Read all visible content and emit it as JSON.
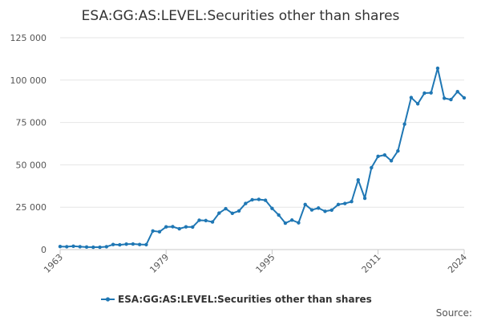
{
  "chart_data": {
    "type": "line",
    "title": "ESA:GG:AS:LEVEL:Securities other than shares",
    "xlabel": "",
    "ylabel": "",
    "ylim": [
      0,
      125000
    ],
    "yticks": [
      0,
      25000,
      50000,
      75000,
      100000,
      125000
    ],
    "ytick_labels": [
      "0",
      "25 000",
      "50 000",
      "75 000",
      "100 000",
      "125 000"
    ],
    "xlim": [
      1963,
      2024
    ],
    "xticks": [
      1963,
      1979,
      1995,
      2011,
      2024
    ],
    "xtick_labels": [
      "1963",
      "1979",
      "1995",
      "2011",
      "2024"
    ],
    "grid": true,
    "legend_position": "bottom",
    "source_label": "Source:",
    "color": "#1f77b4",
    "series": [
      {
        "name": "ESA:GG:AS:LEVEL:Securities other than shares",
        "x": [
          1963,
          1964,
          1965,
          1966,
          1967,
          1968,
          1969,
          1970,
          1971,
          1972,
          1973,
          1974,
          1975,
          1976,
          1977,
          1978,
          1979,
          1980,
          1981,
          1982,
          1983,
          1984,
          1985,
          1986,
          1987,
          1988,
          1989,
          1990,
          1991,
          1992,
          1993,
          1994,
          1995,
          1996,
          1997,
          1998,
          1999,
          2000,
          2001,
          2002,
          2003,
          2004,
          2005,
          2006,
          2007,
          2008,
          2009,
          2010,
          2011,
          2012,
          2013,
          2014,
          2015,
          2016,
          2017,
          2018,
          2019,
          2020,
          2021,
          2022,
          2023,
          2024
        ],
        "values": [
          1800,
          1700,
          2000,
          1700,
          1500,
          1400,
          1400,
          1700,
          3000,
          2800,
          3200,
          3300,
          3000,
          2900,
          11000,
          10500,
          13400,
          13500,
          12300,
          13400,
          13300,
          17300,
          17100,
          16300,
          21500,
          24100,
          21400,
          22800,
          27200,
          29400,
          29600,
          29100,
          24300,
          20400,
          15600,
          17400,
          15800,
          26600,
          23400,
          24500,
          22600,
          23300,
          26600,
          27200,
          28300,
          41100,
          30300,
          48300,
          55000,
          55800,
          52400,
          58200,
          74000,
          89700,
          86000,
          92300,
          92500,
          107000,
          89300,
          88500,
          93200,
          89500
        ]
      }
    ]
  }
}
